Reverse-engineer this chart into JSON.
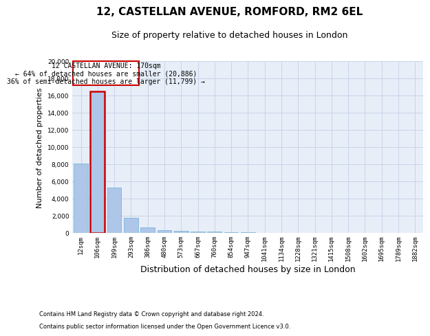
{
  "title": "12, CASTELLAN AVENUE, ROMFORD, RM2 6EL",
  "subtitle": "Size of property relative to detached houses in London",
  "xlabel": "Distribution of detached houses by size in London",
  "ylabel": "Number of detached properties",
  "footnote1": "Contains HM Land Registry data © Crown copyright and database right 2024.",
  "footnote2": "Contains public sector information licensed under the Open Government Licence v3.0.",
  "bar_labels": [
    "12sqm",
    "106sqm",
    "199sqm",
    "293sqm",
    "386sqm",
    "480sqm",
    "573sqm",
    "667sqm",
    "760sqm",
    "854sqm",
    "947sqm",
    "1041sqm",
    "1134sqm",
    "1228sqm",
    "1321sqm",
    "1415sqm",
    "1508sqm",
    "1602sqm",
    "1695sqm",
    "1789sqm",
    "1882sqm"
  ],
  "bar_values": [
    8100,
    16500,
    5300,
    1750,
    650,
    350,
    270,
    200,
    150,
    80,
    50,
    30,
    20,
    15,
    10,
    8,
    6,
    5,
    4,
    3,
    2
  ],
  "bar_color": "#aec6e8",
  "bar_edge_color": "#6baed6",
  "highlight_bar_index": 1,
  "highlight_edge_color": "#cc0000",
  "annotation_text": "12 CASTELLAN AVENUE: 170sqm\n← 64% of detached houses are smaller (20,886)\n36% of semi-detached houses are larger (11,799) →",
  "annotation_box_color": "#ffffff",
  "annotation_box_edge_color": "#cc0000",
  "ylim": [
    0,
    20000
  ],
  "yticks": [
    0,
    2000,
    4000,
    6000,
    8000,
    10000,
    12000,
    14000,
    16000,
    18000,
    20000
  ],
  "grid_color": "#c8d4e8",
  "background_color": "#e8eef8",
  "fig_background": "#ffffff",
  "title_fontsize": 11,
  "subtitle_fontsize": 9,
  "ylabel_fontsize": 8,
  "xlabel_fontsize": 9,
  "tick_fontsize": 6.5,
  "annotation_fontsize": 7,
  "footnote_fontsize": 6
}
